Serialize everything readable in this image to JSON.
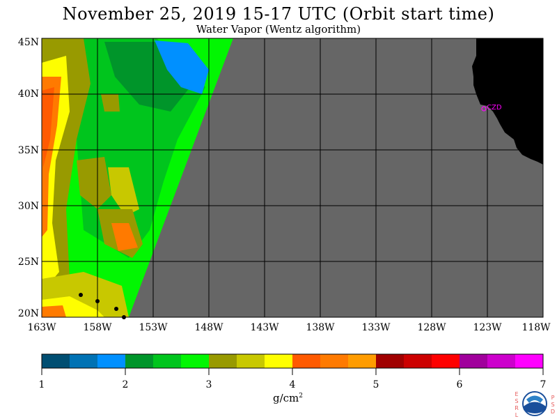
{
  "title": "November 25, 2019  15-17 UTC  (Orbit start time)",
  "subtitle": "Water Vapor (Wentz algorithm)",
  "map": {
    "lat_labels": [
      "45N",
      "40N",
      "35N",
      "30N",
      "25N",
      "20N"
    ],
    "lon_labels": [
      "163W",
      "158W",
      "153W",
      "148W",
      "143W",
      "138W",
      "133W",
      "128W",
      "123W",
      "118W"
    ],
    "station_label": "CZD",
    "nodata_color": "#666666",
    "land_color": "#000000"
  },
  "colorbar": {
    "ticks": [
      "1",
      "2",
      "3",
      "4",
      "5",
      "6",
      "7"
    ],
    "units_base": "g/cm",
    "units_exp": "2",
    "colors": [
      "#004e72",
      "#0072b4",
      "#0090ff",
      "#00952a",
      "#00c51d",
      "#02f602",
      "#989a00",
      "#c8c800",
      "#fefe00",
      "#ff5a00",
      "#ff7a00",
      "#ff9c00",
      "#a00000",
      "#cc0000",
      "#fe0000",
      "#a0009c",
      "#cc00cc",
      "#fe00fe"
    ]
  },
  "logo": {
    "left_letters": [
      "E",
      "S",
      "R",
      "L"
    ],
    "right_letters": [
      "P",
      "S",
      "D"
    ],
    "name": "NOAA"
  }
}
